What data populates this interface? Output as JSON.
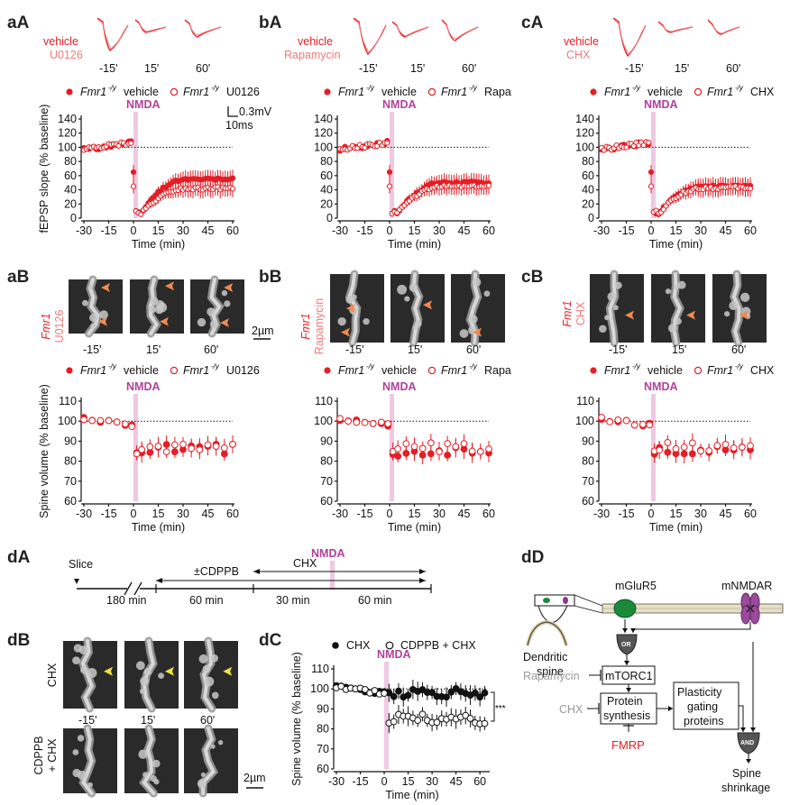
{
  "colors": {
    "red": "#e41e25",
    "pink": "#f07a7a",
    "nmda_bar": "#efc8e2",
    "nmda_text": "#b0419a",
    "arrow": "#f08a50",
    "yellow": "#f0e040",
    "dark": "#111111"
  },
  "panels": {
    "aA": {
      "label": "aA",
      "trace_top": "vehicle",
      "trace_bottom": "U0126",
      "leg1": "vehicle",
      "leg2": "U0126"
    },
    "bA": {
      "label": "bA",
      "trace_top": "vehicle",
      "trace_bottom": "Rapamycin",
      "leg1": "vehicle",
      "leg2": "Rapa"
    },
    "cA": {
      "label": "cA",
      "trace_top": "vehicle",
      "trace_bottom": "CHX",
      "leg1": "vehicle",
      "leg2": "CHX"
    },
    "aB": {
      "label": "aB",
      "drug": "U0126",
      "leg1": "vehicle",
      "leg2": "U0126"
    },
    "bB": {
      "label": "bB",
      "drug": "Rapamycin",
      "leg1": "vehicle",
      "leg2": "Rapa"
    },
    "cB": {
      "label": "cB",
      "drug": "CHX",
      "leg1": "vehicle",
      "leg2": "CHX"
    },
    "dA": {
      "label": "dA"
    },
    "dB": {
      "label": "dB"
    },
    "dC": {
      "label": "dC"
    },
    "dD": {
      "label": "dD"
    }
  },
  "common": {
    "genotype": "Fmr1",
    "genotype_sup": "-/y",
    "times": [
      "-15'",
      "15'",
      "60'"
    ],
    "nmda": "NMDA",
    "xlabel": "Time (min)",
    "ylabel_fepsp": "fEPSP slope (% baseline)",
    "ylabel_spine": "Spine volume (% baseline)",
    "scale_mv": "0.3mV",
    "scale_ms": "10ms",
    "scale_um": "2µm"
  },
  "chart_data": [
    {
      "type": "scatter",
      "id": "aA",
      "title": "",
      "xlabel": "Time (min)",
      "ylabel": "fEPSP slope (% baseline)",
      "xlim": [
        -30,
        60
      ],
      "ylim": [
        0,
        140
      ],
      "xticks": [
        -30,
        -15,
        0,
        15,
        30,
        45,
        60
      ],
      "yticks": [
        0,
        20,
        40,
        60,
        80,
        100,
        120,
        140
      ],
      "series": [
        {
          "name": "Fmr1-/y vehicle",
          "filled": true,
          "profile": "fepsp",
          "recovery": 55,
          "noise": 0.4
        },
        {
          "name": "Fmr1-/y U0126",
          "filled": false,
          "profile": "fepsp",
          "recovery": 42,
          "noise": 0.5
        }
      ]
    },
    {
      "type": "scatter",
      "id": "bA",
      "xlim": [
        -30,
        60
      ],
      "ylim": [
        0,
        140
      ],
      "xticks": [
        -30,
        -15,
        0,
        15,
        30,
        45,
        60
      ],
      "yticks": [
        0,
        20,
        40,
        60,
        80,
        100,
        120,
        140
      ],
      "xlabel": "Time (min)",
      "series": [
        {
          "name": "Fmr1-/y vehicle",
          "filled": true,
          "profile": "fepsp",
          "recovery": 50,
          "noise": 0.5
        },
        {
          "name": "Fmr1-/y Rapa",
          "filled": false,
          "profile": "fepsp",
          "recovery": 45,
          "noise": 0.4
        }
      ]
    },
    {
      "type": "scatter",
      "id": "cA",
      "xlim": [
        -30,
        60
      ],
      "ylim": [
        0,
        140
      ],
      "xticks": [
        -30,
        -15,
        0,
        15,
        30,
        45,
        60
      ],
      "yticks": [
        0,
        20,
        40,
        60,
        80,
        100,
        120,
        140
      ],
      "xlabel": "Time (min)",
      "series": [
        {
          "name": "Fmr1-/y vehicle",
          "filled": true,
          "profile": "fepsp",
          "recovery": 45,
          "noise": 0.4
        },
        {
          "name": "Fmr1-/y CHX",
          "filled": false,
          "profile": "fepsp",
          "recovery": 43,
          "noise": 0.6
        }
      ]
    },
    {
      "type": "scatter",
      "id": "aB",
      "xlim": [
        -30,
        60
      ],
      "ylim": [
        60,
        110
      ],
      "xticks": [
        -30,
        -15,
        0,
        15,
        30,
        45,
        60
      ],
      "yticks": [
        60,
        70,
        80,
        90,
        100,
        110
      ],
      "xlabel": "Time (min)",
      "ylabel": "Spine volume (% baseline)",
      "series": [
        {
          "name": "Fmr1-/y vehicle",
          "filled": true,
          "profile": "spine",
          "level": 86
        },
        {
          "name": "Fmr1-/y U0126",
          "filled": false,
          "profile": "spine",
          "level": 86
        }
      ]
    },
    {
      "type": "scatter",
      "id": "bB",
      "xlim": [
        -30,
        60
      ],
      "ylim": [
        60,
        110
      ],
      "xticks": [
        -30,
        -15,
        0,
        15,
        30,
        45,
        60
      ],
      "yticks": [
        60,
        70,
        80,
        90,
        100,
        110
      ],
      "xlabel": "Time (min)",
      "series": [
        {
          "name": "Fmr1-/y vehicle",
          "filled": true,
          "profile": "spine",
          "level": 85
        },
        {
          "name": "Fmr1-/y Rapa",
          "filled": false,
          "profile": "spine",
          "level": 87
        }
      ]
    },
    {
      "type": "scatter",
      "id": "cB",
      "xlim": [
        -30,
        60
      ],
      "ylim": [
        60,
        110
      ],
      "xticks": [
        -30,
        -15,
        0,
        15,
        30,
        45,
        60
      ],
      "yticks": [
        60,
        70,
        80,
        90,
        100,
        110
      ],
      "xlabel": "Time (min)",
      "series": [
        {
          "name": "Fmr1-/y vehicle",
          "filled": true,
          "profile": "spine",
          "level": 85
        },
        {
          "name": "Fmr1-/y CHX",
          "filled": false,
          "profile": "spine",
          "level": 87
        }
      ]
    },
    {
      "type": "scatter",
      "id": "dC",
      "xlim": [
        -30,
        65
      ],
      "ylim": [
        60,
        110
      ],
      "xticks": [
        -30,
        -15,
        0,
        15,
        30,
        45,
        60
      ],
      "yticks": [
        60,
        70,
        80,
        90,
        100,
        110
      ],
      "xlabel": "Time (min)",
      "ylabel": "Spine volume (% baseline)",
      "series": [
        {
          "name": "CHX",
          "filled": true,
          "color": "#111111",
          "profile": "spine",
          "level": 98
        },
        {
          "name": "CDPPB + CHX",
          "filled": false,
          "color": "#111111",
          "profile": "spine",
          "level": 85
        }
      ],
      "significance": "***"
    }
  ],
  "timeline": {
    "slice": "Slice",
    "cdppb": "±CDPPB",
    "chx": "CHX",
    "nmda": "NMDA",
    "d180": "180 min",
    "d60a": "60 min",
    "d30": "30 min",
    "d60b": "60 min"
  },
  "dB": {
    "row1": "CHX",
    "row2a": "CDPPB",
    "row2b": "+ CHX"
  },
  "dC_legend": {
    "s1": "CHX",
    "s2": "CDPPB + CHX",
    "sig": "***"
  },
  "diagram": {
    "dendritic": "Dendritic",
    "spine": "spine",
    "mglur5": "mGluR5",
    "mnmdar": "mNMDAR",
    "or": "OR",
    "and": "AND",
    "rapamycin": "Rapamycin",
    "mtorc1": "mTORC1",
    "chx": "CHX",
    "protein": "Protein",
    "synthesis": "synthesis",
    "fmrp": "FMRP",
    "plasticity": "Plasticity",
    "gating": "gating",
    "proteins": "proteins",
    "shrink1": "Spine",
    "shrink2": "shrinkage"
  }
}
